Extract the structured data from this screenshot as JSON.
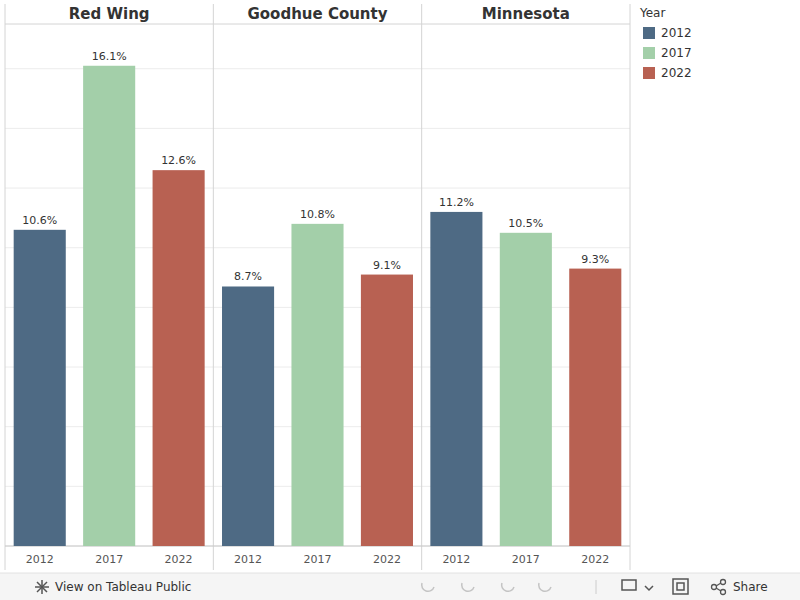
{
  "chart_data": {
    "type": "bar",
    "categories": [
      "Red Wing",
      "Goodhue County",
      "Minnesota"
    ],
    "series": [
      {
        "name": "2012",
        "color": "#4e6a84",
        "values": [
          10.6,
          8.7,
          11.2
        ],
        "value_labels": [
          "10.6%",
          "8.7%",
          "11.2%"
        ]
      },
      {
        "name": "2017",
        "color": "#a3cfa9",
        "values": [
          16.1,
          10.8,
          10.5
        ],
        "value_labels": [
          "16.1%",
          "10.8%",
          "10.5%"
        ]
      },
      {
        "name": "2022",
        "color": "#b86152",
        "values": [
          12.6,
          9.1,
          9.3
        ],
        "value_labels": [
          "12.6%",
          "9.1%",
          "9.3%"
        ]
      }
    ],
    "legend_title": "Year",
    "legend": "top-right",
    "ylim": [
      0,
      17.5
    ],
    "yticks": [
      0,
      2,
      4,
      6,
      8,
      10,
      12,
      14,
      16
    ],
    "grid": true,
    "data_labels": true,
    "tick_labels": "x"
  },
  "toolbar": {
    "link": "View on Tableau Public",
    "share": "Share"
  }
}
